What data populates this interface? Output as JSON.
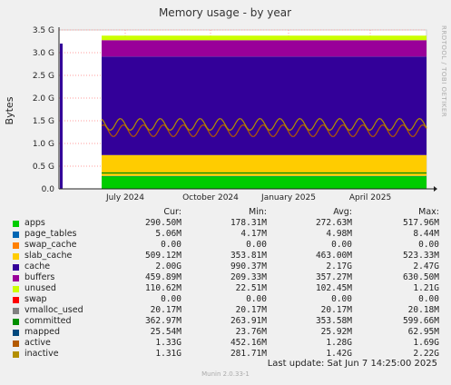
{
  "title": "Memory usage - by year",
  "side_label": "RRDTOOL / TOBI OETIKER",
  "last_update": "Last update:  Sat Jun  7 14:25:00 2025",
  "version": "Munin 2.0.33-1",
  "legend_headers": {
    "cur": "Cur:",
    "min": "Min:",
    "avg": "Avg:",
    "max": "Max:"
  },
  "legend": [
    {
      "name": "apps",
      "color": "#00cc00",
      "cur": "290.50M",
      "min": "178.31M",
      "avg": "272.63M",
      "max": "517.96M"
    },
    {
      "name": "page_tables",
      "color": "#0066b3",
      "cur": "5.06M",
      "min": "4.17M",
      "avg": "4.98M",
      "max": "8.44M"
    },
    {
      "name": "swap_cache",
      "color": "#ff8000",
      "cur": "0.00",
      "min": "0.00",
      "avg": "0.00",
      "max": "0.00"
    },
    {
      "name": "slab_cache",
      "color": "#ffcc00",
      "cur": "509.12M",
      "min": "353.81M",
      "avg": "463.00M",
      "max": "523.33M"
    },
    {
      "name": "cache",
      "color": "#330099",
      "cur": "2.00G",
      "min": "990.37M",
      "avg": "2.17G",
      "max": "2.47G"
    },
    {
      "name": "buffers",
      "color": "#990099",
      "cur": "459.89M",
      "min": "209.33M",
      "avg": "357.27M",
      "max": "630.50M"
    },
    {
      "name": "unused",
      "color": "#ccff00",
      "cur": "110.62M",
      "min": "22.51M",
      "avg": "102.45M",
      "max": "1.21G"
    },
    {
      "name": "swap",
      "color": "#ff0000",
      "cur": "0.00",
      "min": "0.00",
      "avg": "0.00",
      "max": "0.00"
    },
    {
      "name": "vmalloc_used",
      "color": "#808080",
      "cur": "20.17M",
      "min": "20.17M",
      "avg": "20.17M",
      "max": "20.18M"
    },
    {
      "name": "committed",
      "color": "#008f00",
      "cur": "362.97M",
      "min": "263.91M",
      "avg": "353.58M",
      "max": "599.66M"
    },
    {
      "name": "mapped",
      "color": "#00487d",
      "cur": "25.54M",
      "min": "23.76M",
      "avg": "25.92M",
      "max": "62.95M"
    },
    {
      "name": "active",
      "color": "#b35a00",
      "cur": "1.33G",
      "min": "452.16M",
      "avg": "1.28G",
      "max": "1.69G"
    },
    {
      "name": "inactive",
      "color": "#b38f00",
      "cur": "1.31G",
      "min": "281.71M",
      "avg": "1.42G",
      "max": "2.22G"
    }
  ],
  "chart_data": {
    "type": "area",
    "title": "Memory usage - by year",
    "ylabel": "Bytes",
    "ylim": [
      0,
      3.5
    ],
    "yunit": "G",
    "yticks": [
      "0.0",
      "0.5 G",
      "1.0 G",
      "1.5 G",
      "2.0 G",
      "2.5 G",
      "3.0 G",
      "3.5 G"
    ],
    "xticks": [
      "July 2024",
      "October 2024",
      "January 2025",
      "April 2025"
    ],
    "stacked_series": [
      {
        "name": "apps",
        "approx_value_G": 0.28
      },
      {
        "name": "page_tables",
        "approx_value_G": 0.005
      },
      {
        "name": "swap_cache",
        "approx_value_G": 0.0
      },
      {
        "name": "slab_cache",
        "approx_value_G": 0.46
      },
      {
        "name": "cache",
        "approx_value_G": 2.17
      },
      {
        "name": "buffers",
        "approx_value_G": 0.36
      },
      {
        "name": "unused",
        "approx_value_G": 0.1
      },
      {
        "name": "swap",
        "approx_value_G": 0.0
      }
    ],
    "line_series": [
      {
        "name": "committed",
        "approx_value_G": 0.35
      },
      {
        "name": "active",
        "approx_value_G": 1.28
      },
      {
        "name": "inactive",
        "approx_value_G": 1.42
      }
    ]
  }
}
